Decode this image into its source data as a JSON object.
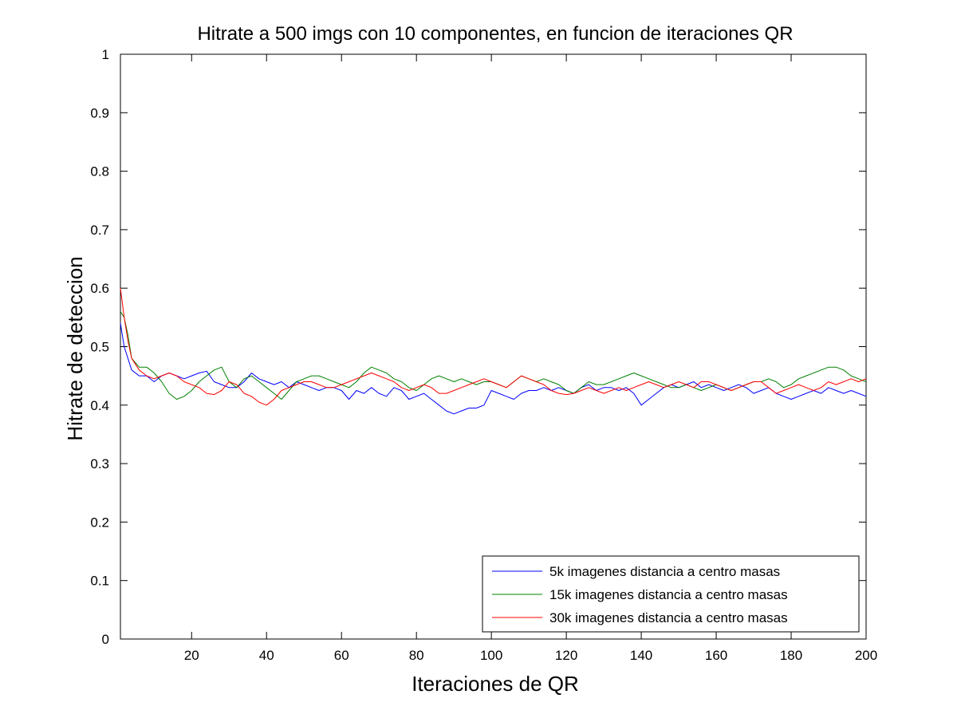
{
  "chart_data": {
    "type": "line",
    "title": "Hitrate a 500 imgs con 10 componentes, en funcion de iteraciones QR",
    "xlabel": "Iteraciones de QR",
    "ylabel": "Hitrate de deteccion",
    "xlim": [
      1,
      200
    ],
    "ylim": [
      0,
      1
    ],
    "xticks": [
      20,
      40,
      60,
      80,
      100,
      120,
      140,
      160,
      180,
      200
    ],
    "yticks": [
      0,
      0.1,
      0.2,
      0.3,
      0.4,
      0.5,
      0.6,
      0.7,
      0.8,
      0.9,
      1
    ],
    "ytick_labels": [
      "0",
      "0.1",
      "0.2",
      "0.3",
      "0.4",
      "0.5",
      "0.6",
      "0.7",
      "0.8",
      "0.9",
      "1"
    ],
    "grid": false,
    "legend_position": "bottom-right",
    "series": [
      {
        "name": "5k imagenes distancia a centro masas",
        "color": "#0000ff",
        "x": [
          1,
          2,
          3,
          4,
          6,
          8,
          10,
          12,
          14,
          16,
          18,
          20,
          22,
          24,
          26,
          28,
          30,
          32,
          34,
          36,
          38,
          40,
          42,
          44,
          46,
          48,
          50,
          52,
          54,
          56,
          58,
          60,
          62,
          64,
          66,
          68,
          70,
          72,
          74,
          76,
          78,
          80,
          82,
          84,
          86,
          88,
          90,
          92,
          94,
          96,
          98,
          100,
          102,
          104,
          106,
          108,
          110,
          112,
          114,
          116,
          118,
          120,
          122,
          124,
          126,
          128,
          130,
          132,
          134,
          136,
          138,
          140,
          142,
          144,
          146,
          148,
          150,
          152,
          154,
          156,
          158,
          160,
          162,
          164,
          166,
          168,
          170,
          172,
          174,
          176,
          178,
          180,
          182,
          184,
          186,
          188,
          190,
          192,
          194,
          196,
          198,
          200
        ],
        "y": [
          0.54,
          0.5,
          0.48,
          0.46,
          0.45,
          0.45,
          0.44,
          0.45,
          0.455,
          0.45,
          0.445,
          0.45,
          0.455,
          0.458,
          0.44,
          0.435,
          0.43,
          0.43,
          0.44,
          0.455,
          0.445,
          0.44,
          0.435,
          0.44,
          0.43,
          0.44,
          0.435,
          0.43,
          0.425,
          0.43,
          0.43,
          0.425,
          0.41,
          0.425,
          0.42,
          0.43,
          0.42,
          0.415,
          0.43,
          0.425,
          0.41,
          0.415,
          0.42,
          0.41,
          0.4,
          0.39,
          0.385,
          0.39,
          0.395,
          0.395,
          0.4,
          0.425,
          0.42,
          0.415,
          0.41,
          0.42,
          0.425,
          0.425,
          0.43,
          0.425,
          0.43,
          0.425,
          0.42,
          0.43,
          0.435,
          0.425,
          0.43,
          0.43,
          0.425,
          0.43,
          0.42,
          0.4,
          0.41,
          0.42,
          0.43,
          0.435,
          0.43,
          0.435,
          0.44,
          0.43,
          0.435,
          0.43,
          0.425,
          0.43,
          0.435,
          0.43,
          0.42,
          0.425,
          0.43,
          0.42,
          0.415,
          0.41,
          0.415,
          0.42,
          0.425,
          0.42,
          0.43,
          0.425,
          0.42,
          0.425,
          0.42,
          0.415
        ]
      },
      {
        "name": "15k imagenes distancia a centro masas",
        "color": "#008000",
        "x": [
          1,
          2,
          3,
          4,
          6,
          8,
          10,
          12,
          14,
          16,
          18,
          20,
          22,
          24,
          26,
          28,
          30,
          32,
          34,
          36,
          38,
          40,
          42,
          44,
          46,
          48,
          50,
          52,
          54,
          56,
          58,
          60,
          62,
          64,
          66,
          68,
          70,
          72,
          74,
          76,
          78,
          80,
          82,
          84,
          86,
          88,
          90,
          92,
          94,
          96,
          98,
          100,
          102,
          104,
          106,
          108,
          110,
          112,
          114,
          116,
          118,
          120,
          122,
          124,
          126,
          128,
          130,
          132,
          134,
          136,
          138,
          140,
          142,
          144,
          146,
          148,
          150,
          152,
          154,
          156,
          158,
          160,
          162,
          164,
          166,
          168,
          170,
          172,
          174,
          176,
          178,
          180,
          182,
          184,
          186,
          188,
          190,
          192,
          194,
          196,
          198,
          200
        ],
        "y": [
          0.56,
          0.55,
          0.52,
          0.48,
          0.465,
          0.465,
          0.455,
          0.44,
          0.42,
          0.41,
          0.415,
          0.425,
          0.44,
          0.45,
          0.46,
          0.465,
          0.44,
          0.43,
          0.445,
          0.45,
          0.44,
          0.43,
          0.42,
          0.41,
          0.425,
          0.44,
          0.445,
          0.45,
          0.45,
          0.445,
          0.44,
          0.435,
          0.43,
          0.44,
          0.455,
          0.465,
          0.46,
          0.455,
          0.445,
          0.44,
          0.43,
          0.425,
          0.435,
          0.445,
          0.45,
          0.445,
          0.44,
          0.445,
          0.44,
          0.435,
          0.44,
          0.44,
          0.435,
          0.43,
          0.44,
          0.45,
          0.445,
          0.44,
          0.445,
          0.44,
          0.435,
          0.425,
          0.42,
          0.43,
          0.44,
          0.435,
          0.435,
          0.44,
          0.445,
          0.45,
          0.455,
          0.45,
          0.445,
          0.44,
          0.435,
          0.43,
          0.43,
          0.435,
          0.43,
          0.425,
          0.43,
          0.435,
          0.43,
          0.425,
          0.43,
          0.435,
          0.44,
          0.44,
          0.445,
          0.44,
          0.43,
          0.435,
          0.445,
          0.45,
          0.455,
          0.46,
          0.465,
          0.465,
          0.46,
          0.45,
          0.445,
          0.44
        ]
      },
      {
        "name": "30k imagenes distancia a centro masas",
        "color": "#ff0000",
        "x": [
          1,
          2,
          3,
          4,
          6,
          8,
          10,
          12,
          14,
          16,
          18,
          20,
          22,
          24,
          26,
          28,
          30,
          32,
          34,
          36,
          38,
          40,
          42,
          44,
          46,
          48,
          50,
          52,
          54,
          56,
          58,
          60,
          62,
          64,
          66,
          68,
          70,
          72,
          74,
          76,
          78,
          80,
          82,
          84,
          86,
          88,
          90,
          92,
          94,
          96,
          98,
          100,
          102,
          104,
          106,
          108,
          110,
          112,
          114,
          116,
          118,
          120,
          122,
          124,
          126,
          128,
          130,
          132,
          134,
          136,
          138,
          140,
          142,
          144,
          146,
          148,
          150,
          152,
          154,
          156,
          158,
          160,
          162,
          164,
          166,
          168,
          170,
          172,
          174,
          176,
          178,
          180,
          182,
          184,
          186,
          188,
          190,
          192,
          194,
          196,
          198,
          200
        ],
        "y": [
          0.6,
          0.55,
          0.51,
          0.48,
          0.46,
          0.45,
          0.445,
          0.45,
          0.455,
          0.45,
          0.44,
          0.435,
          0.43,
          0.42,
          0.418,
          0.425,
          0.44,
          0.435,
          0.42,
          0.415,
          0.405,
          0.4,
          0.41,
          0.425,
          0.43,
          0.435,
          0.44,
          0.44,
          0.435,
          0.43,
          0.43,
          0.435,
          0.44,
          0.445,
          0.45,
          0.455,
          0.45,
          0.445,
          0.44,
          0.43,
          0.425,
          0.43,
          0.435,
          0.43,
          0.42,
          0.42,
          0.425,
          0.43,
          0.435,
          0.44,
          0.445,
          0.44,
          0.435,
          0.43,
          0.44,
          0.45,
          0.445,
          0.44,
          0.435,
          0.425,
          0.42,
          0.418,
          0.42,
          0.425,
          0.43,
          0.425,
          0.42,
          0.425,
          0.43,
          0.425,
          0.43,
          0.435,
          0.44,
          0.435,
          0.43,
          0.435,
          0.44,
          0.435,
          0.43,
          0.44,
          0.44,
          0.435,
          0.43,
          0.425,
          0.43,
          0.435,
          0.44,
          0.44,
          0.43,
          0.42,
          0.425,
          0.43,
          0.435,
          0.43,
          0.425,
          0.43,
          0.44,
          0.435,
          0.44,
          0.445,
          0.44,
          0.445
        ]
      }
    ]
  }
}
